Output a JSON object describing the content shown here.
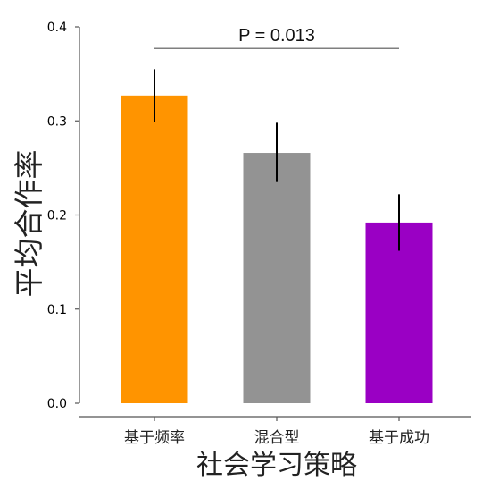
{
  "chart_data": {
    "type": "bar",
    "categories": [
      "基于频率",
      "混合型",
      "基于成功"
    ],
    "values": [
      0.327,
      0.266,
      0.192
    ],
    "error_low": [
      0.299,
      0.235,
      0.162
    ],
    "error_high": [
      0.355,
      0.298,
      0.222
    ],
    "colors": [
      "#FF9400",
      "#939393",
      "#9A00C4"
    ],
    "xlabel": "社会学习策略",
    "ylabel": "平均合作率",
    "ylim": [
      0,
      0.4
    ],
    "yticks": [
      "0.0",
      "0.1",
      "0.2",
      "0.3",
      "0.4"
    ],
    "annotation": {
      "text": "P = 0.013",
      "from_category": 0,
      "to_category": 2,
      "y": 0.377
    },
    "grid": false
  }
}
